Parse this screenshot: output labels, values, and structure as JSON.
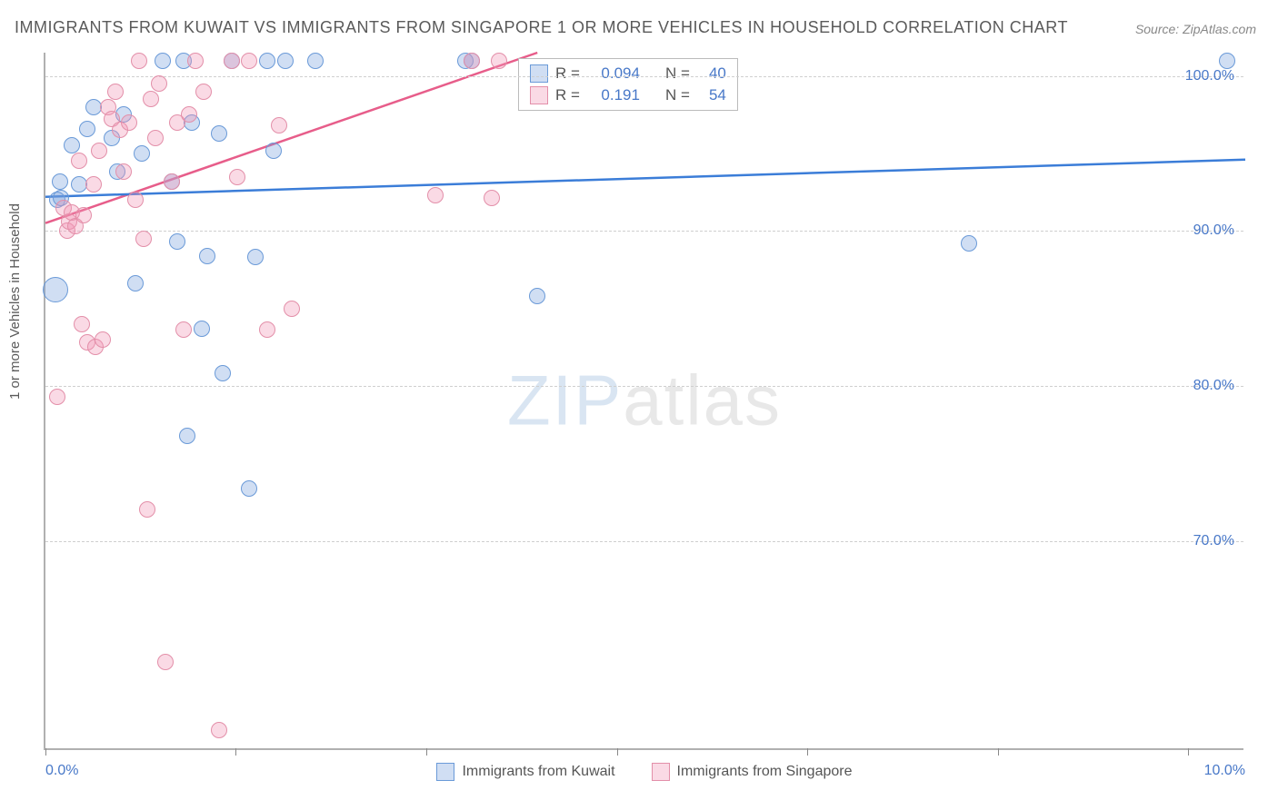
{
  "title": "IMMIGRANTS FROM KUWAIT VS IMMIGRANTS FROM SINGAPORE 1 OR MORE VEHICLES IN HOUSEHOLD CORRELATION CHART",
  "source": "Source: ZipAtlas.com",
  "y_axis_label": "1 or more Vehicles in Household",
  "watermark_zip": "ZIP",
  "watermark_atlas": "atlas",
  "chart": {
    "type": "scatter",
    "xlim": [
      0.0,
      10.0
    ],
    "ylim": [
      56.5,
      101.5
    ],
    "y_ticks": [
      70.0,
      80.0,
      90.0,
      100.0
    ],
    "y_tick_labels": [
      "70.0%",
      "80.0%",
      "90.0%",
      "100.0%"
    ],
    "x_tick_positions": [
      0.0,
      1.587,
      3.175,
      4.762,
      6.349,
      7.937,
      9.524
    ],
    "x_tick_labels": {
      "start": "0.0%",
      "end": "10.0%"
    },
    "grid_color": "#cfcfcf",
    "background_color": "#ffffff",
    "axis_color": "#b0b0b0",
    "marker_radius": 9,
    "marker_stroke_width": 1.2,
    "series": [
      {
        "name": "kuwait",
        "label": "Immigrants from Kuwait",
        "fill": "rgba(120,160,220,0.35)",
        "stroke": "#6a9ad8",
        "R": "0.094",
        "N": "40",
        "regression": {
          "x1": 0.0,
          "y1": 92.2,
          "x2": 10.0,
          "y2": 94.6
        },
        "points": [
          {
            "x": 0.08,
            "y": 86.2,
            "r": 14
          },
          {
            "x": 0.1,
            "y": 92.0
          },
          {
            "x": 0.12,
            "y": 93.2
          },
          {
            "x": 0.22,
            "y": 95.5
          },
          {
            "x": 0.13,
            "y": 92.1
          },
          {
            "x": 0.28,
            "y": 93.0
          },
          {
            "x": 0.35,
            "y": 96.6
          },
          {
            "x": 0.4,
            "y": 98.0
          },
          {
            "x": 0.55,
            "y": 96.0
          },
          {
            "x": 0.6,
            "y": 93.8
          },
          {
            "x": 0.65,
            "y": 97.5
          },
          {
            "x": 0.75,
            "y": 86.6
          },
          {
            "x": 0.8,
            "y": 95.0
          },
          {
            "x": 0.98,
            "y": 101.0
          },
          {
            "x": 1.05,
            "y": 93.2
          },
          {
            "x": 1.1,
            "y": 89.3
          },
          {
            "x": 1.15,
            "y": 101.0
          },
          {
            "x": 1.18,
            "y": 76.8
          },
          {
            "x": 1.22,
            "y": 97.0
          },
          {
            "x": 1.3,
            "y": 83.7
          },
          {
            "x": 1.35,
            "y": 88.4
          },
          {
            "x": 1.45,
            "y": 96.3
          },
          {
            "x": 1.48,
            "y": 80.8
          },
          {
            "x": 1.55,
            "y": 101.0
          },
          {
            "x": 1.7,
            "y": 73.4
          },
          {
            "x": 1.75,
            "y": 88.3
          },
          {
            "x": 1.85,
            "y": 101.0
          },
          {
            "x": 1.9,
            "y": 95.2
          },
          {
            "x": 2.0,
            "y": 101.0
          },
          {
            "x": 2.25,
            "y": 101.0
          },
          {
            "x": 3.5,
            "y": 101.0
          },
          {
            "x": 3.55,
            "y": 101.0
          },
          {
            "x": 4.1,
            "y": 85.8
          },
          {
            "x": 7.7,
            "y": 89.2
          },
          {
            "x": 9.85,
            "y": 101.0
          }
        ]
      },
      {
        "name": "singapore",
        "label": "Immigrants from Singapore",
        "fill": "rgba(240,150,180,0.35)",
        "stroke": "#e38fa9",
        "R": "0.191",
        "N": "54",
        "regression": {
          "x1": 0.0,
          "y1": 90.5,
          "x2": 4.1,
          "y2": 101.5
        },
        "points": [
          {
            "x": 0.1,
            "y": 79.3
          },
          {
            "x": 0.15,
            "y": 91.5
          },
          {
            "x": 0.18,
            "y": 90.0
          },
          {
            "x": 0.2,
            "y": 90.6
          },
          {
            "x": 0.22,
            "y": 91.2
          },
          {
            "x": 0.25,
            "y": 90.3
          },
          {
            "x": 0.28,
            "y": 94.5
          },
          {
            "x": 0.3,
            "y": 84.0
          },
          {
            "x": 0.32,
            "y": 91.0
          },
          {
            "x": 0.35,
            "y": 82.8
          },
          {
            "x": 0.4,
            "y": 93.0
          },
          {
            "x": 0.42,
            "y": 82.5
          },
          {
            "x": 0.45,
            "y": 95.2
          },
          {
            "x": 0.48,
            "y": 83.0
          },
          {
            "x": 0.52,
            "y": 98.0
          },
          {
            "x": 0.55,
            "y": 97.2
          },
          {
            "x": 0.58,
            "y": 99.0
          },
          {
            "x": 0.62,
            "y": 96.5
          },
          {
            "x": 0.65,
            "y": 93.8
          },
          {
            "x": 0.7,
            "y": 97.0
          },
          {
            "x": 0.75,
            "y": 92.0
          },
          {
            "x": 0.78,
            "y": 101.0
          },
          {
            "x": 0.82,
            "y": 89.5
          },
          {
            "x": 0.85,
            "y": 72.0
          },
          {
            "x": 0.88,
            "y": 98.5
          },
          {
            "x": 0.92,
            "y": 96.0
          },
          {
            "x": 0.95,
            "y": 99.5
          },
          {
            "x": 1.0,
            "y": 62.2
          },
          {
            "x": 1.05,
            "y": 93.2
          },
          {
            "x": 1.1,
            "y": 97.0
          },
          {
            "x": 1.15,
            "y": 83.6
          },
          {
            "x": 1.2,
            "y": 97.5
          },
          {
            "x": 1.25,
            "y": 101.0
          },
          {
            "x": 1.32,
            "y": 99.0
          },
          {
            "x": 1.45,
            "y": 57.8
          },
          {
            "x": 1.55,
            "y": 101.0
          },
          {
            "x": 1.6,
            "y": 93.5
          },
          {
            "x": 1.7,
            "y": 101.0
          },
          {
            "x": 1.85,
            "y": 83.6
          },
          {
            "x": 1.95,
            "y": 96.8
          },
          {
            "x": 2.05,
            "y": 85.0
          },
          {
            "x": 3.25,
            "y": 92.3
          },
          {
            "x": 3.55,
            "y": 101.0
          },
          {
            "x": 3.72,
            "y": 92.1
          },
          {
            "x": 3.78,
            "y": 101.0
          }
        ]
      }
    ],
    "legend_R_label": "R =",
    "legend_N_label": "N ="
  }
}
